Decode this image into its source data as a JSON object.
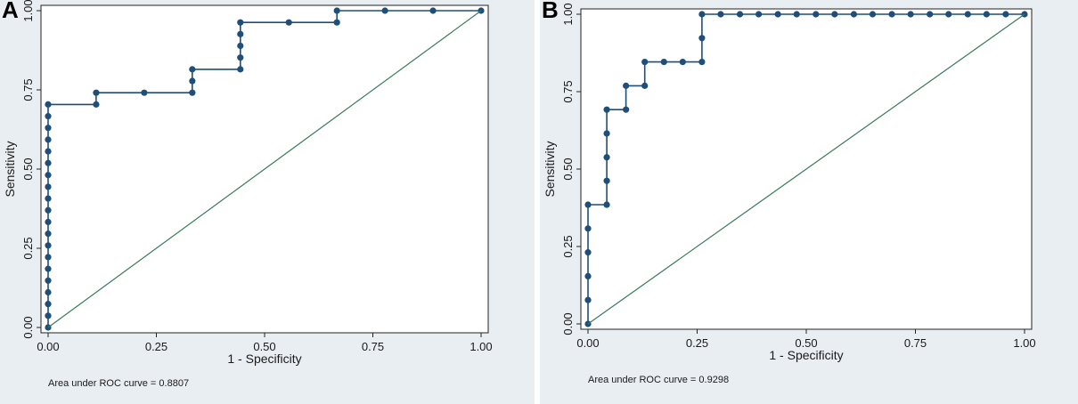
{
  "figure": {
    "panels": [
      {
        "letter": "A"
      },
      {
        "letter": "B"
      }
    ]
  },
  "colors": {
    "roc_curve": "#1f4e79",
    "reference_line": "#3a7a5c",
    "axis": "#222222",
    "plot_background": "#ffffff",
    "panel_background": "#e9eef2"
  },
  "chart_data": [
    {
      "panel": "A",
      "type": "line",
      "title": "",
      "xlabel": "1 - Specificity",
      "ylabel": "Sensitivity",
      "xlim": [
        0,
        1
      ],
      "ylim": [
        0,
        1
      ],
      "x_ticks": [
        0,
        0.25,
        0.5,
        0.75,
        1
      ],
      "x_tick_labels": [
        "0.00",
        "0.25",
        "0.50",
        "0.75",
        "1.00"
      ],
      "y_ticks": [
        0,
        0.25,
        0.5,
        0.75,
        1
      ],
      "y_tick_labels": [
        "0.00",
        "0.25",
        "0.50",
        "0.75",
        "1.00"
      ],
      "annotation": "Area under ROC curve = 0.8807",
      "series": [
        {
          "name": "ROC curve",
          "style": "step-markers",
          "points": [
            [
              0,
              0
            ],
            [
              0,
              0.037
            ],
            [
              0,
              0.074
            ],
            [
              0,
              0.111
            ],
            [
              0,
              0.148
            ],
            [
              0,
              0.185
            ],
            [
              0,
              0.222
            ],
            [
              0,
              0.259
            ],
            [
              0,
              0.296
            ],
            [
              0,
              0.333
            ],
            [
              0,
              0.37
            ],
            [
              0,
              0.407
            ],
            [
              0,
              0.444
            ],
            [
              0,
              0.481
            ],
            [
              0,
              0.519
            ],
            [
              0,
              0.556
            ],
            [
              0,
              0.593
            ],
            [
              0,
              0.63
            ],
            [
              0,
              0.667
            ],
            [
              0,
              0.704
            ],
            [
              0.111,
              0.704
            ],
            [
              0.111,
              0.741
            ],
            [
              0.222,
              0.741
            ],
            [
              0.333,
              0.741
            ],
            [
              0.333,
              0.778
            ],
            [
              0.333,
              0.815
            ],
            [
              0.444,
              0.815
            ],
            [
              0.444,
              0.852
            ],
            [
              0.444,
              0.889
            ],
            [
              0.444,
              0.926
            ],
            [
              0.444,
              0.963
            ],
            [
              0.556,
              0.963
            ],
            [
              0.667,
              0.963
            ],
            [
              0.667,
              1.0
            ],
            [
              0.778,
              1.0
            ],
            [
              0.889,
              1.0
            ],
            [
              1.0,
              1.0
            ]
          ]
        },
        {
          "name": "Reference",
          "style": "line",
          "points": [
            [
              0,
              0
            ],
            [
              1,
              1
            ]
          ]
        }
      ]
    },
    {
      "panel": "B",
      "type": "line",
      "title": "",
      "xlabel": "1 - Specificity",
      "ylabel": "Sensitivity",
      "xlim": [
        0,
        1
      ],
      "ylim": [
        0,
        1
      ],
      "x_ticks": [
        0,
        0.25,
        0.5,
        0.75,
        1
      ],
      "x_tick_labels": [
        "0.00",
        "0.25",
        "0.50",
        "0.75",
        "1.00"
      ],
      "y_ticks": [
        0,
        0.25,
        0.5,
        0.75,
        1
      ],
      "y_tick_labels": [
        "0.00",
        "0.25",
        "0.50",
        "0.75",
        "1.00"
      ],
      "annotation": "Area under ROC curve = 0.9298",
      "series": [
        {
          "name": "ROC curve",
          "style": "step-markers",
          "points": [
            [
              0,
              0
            ],
            [
              0,
              0.077
            ],
            [
              0,
              0.154
            ],
            [
              0,
              0.231
            ],
            [
              0,
              0.308
            ],
            [
              0,
              0.385
            ],
            [
              0.043,
              0.385
            ],
            [
              0.043,
              0.462
            ],
            [
              0.043,
              0.538
            ],
            [
              0.043,
              0.615
            ],
            [
              0.043,
              0.692
            ],
            [
              0.087,
              0.692
            ],
            [
              0.087,
              0.769
            ],
            [
              0.13,
              0.769
            ],
            [
              0.13,
              0.846
            ],
            [
              0.174,
              0.846
            ],
            [
              0.217,
              0.846
            ],
            [
              0.261,
              0.846
            ],
            [
              0.261,
              0.923
            ],
            [
              0.261,
              1.0
            ],
            [
              0.304,
              1.0
            ],
            [
              0.348,
              1.0
            ],
            [
              0.391,
              1.0
            ],
            [
              0.435,
              1.0
            ],
            [
              0.478,
              1.0
            ],
            [
              0.522,
              1.0
            ],
            [
              0.565,
              1.0
            ],
            [
              0.609,
              1.0
            ],
            [
              0.652,
              1.0
            ],
            [
              0.696,
              1.0
            ],
            [
              0.739,
              1.0
            ],
            [
              0.783,
              1.0
            ],
            [
              0.826,
              1.0
            ],
            [
              0.87,
              1.0
            ],
            [
              0.913,
              1.0
            ],
            [
              0.957,
              1.0
            ],
            [
              1.0,
              1.0
            ]
          ]
        },
        {
          "name": "Reference",
          "style": "line",
          "points": [
            [
              0,
              0
            ],
            [
              1,
              1
            ]
          ]
        }
      ]
    }
  ]
}
